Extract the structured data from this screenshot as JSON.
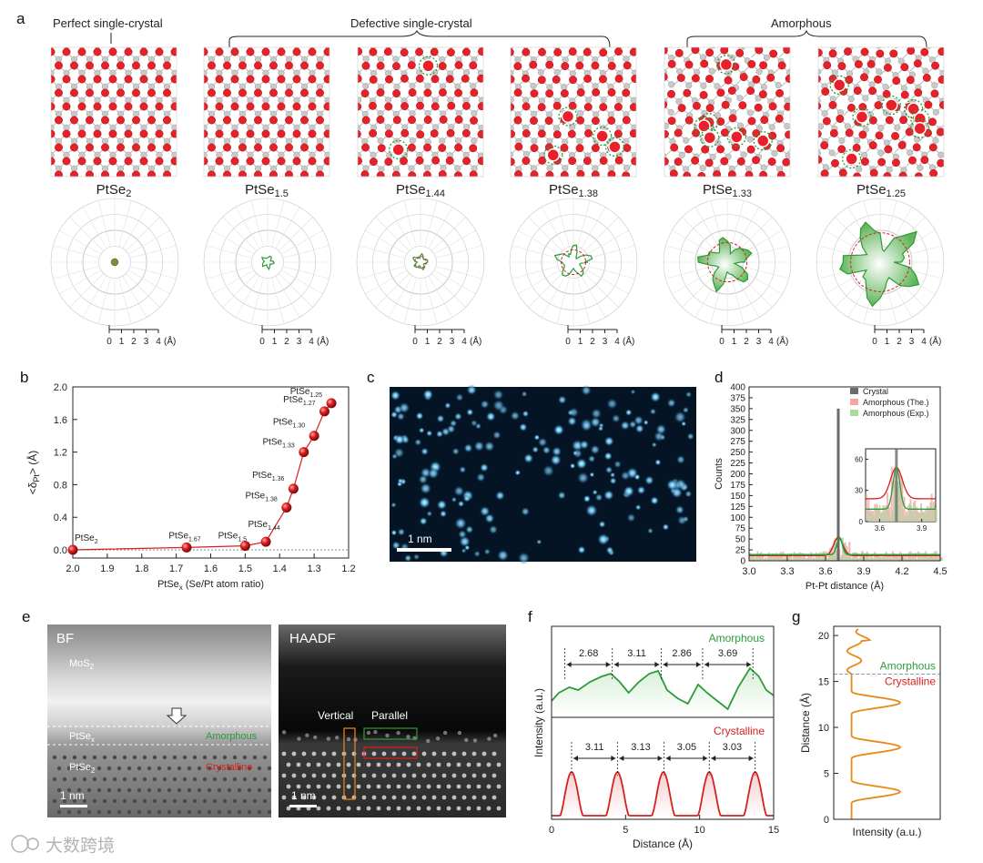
{
  "panels": {
    "a": {
      "label": "a",
      "group_labels": [
        "Perfect single-crystal",
        "Defective single-crystal",
        "Amorphous"
      ],
      "structures": [
        {
          "formula": "PtSe",
          "sub": "2",
          "defects": 0,
          "polar_level": 0.2
        },
        {
          "formula": "PtSe",
          "sub": "1.5",
          "defects": 0,
          "polar_level": 0.3
        },
        {
          "formula": "PtSe",
          "sub": "1.44",
          "defects": 2,
          "polar_level": 0.35
        },
        {
          "formula": "PtSe",
          "sub": "1.38",
          "defects": 4,
          "polar_level": 0.75
        },
        {
          "formula": "PtSe",
          "sub": "1.33",
          "defects": 6,
          "polar_level": 1.2
        },
        {
          "formula": "PtSe",
          "sub": "1.25",
          "defects": 7,
          "polar_level": 1.8
        }
      ],
      "scale_ticks": [
        "0",
        "1",
        "2",
        "3",
        "4"
      ],
      "scale_unit": "(Å)"
    },
    "b": {
      "label": "b",
      "chart_data": {
        "type": "line",
        "xlabel": "PtSe",
        "xlabel_sub": "x",
        "xlabel_tail": " (Se/Pt atom ratio)",
        "ylabel": "<δ",
        "ylabel_sub": "Pt",
        "ylabel_tail": "> (Å)",
        "xlim": [
          2.0,
          1.2
        ],
        "ylim": [
          -0.1,
          2.0
        ],
        "xticks": [
          "2.0",
          "1.9",
          "1.8",
          "1.7",
          "1.6",
          "1.5",
          "1.4",
          "1.3",
          "1.2"
        ],
        "yticks": [
          "0.0",
          "0.4",
          "0.8",
          "1.2",
          "1.6",
          "2.0"
        ],
        "points": [
          {
            "x": 2.0,
            "y": 0.0,
            "label": "PtSe",
            "sub": "2"
          },
          {
            "x": 1.67,
            "y": 0.03,
            "label": "PtSe",
            "sub": "1.67"
          },
          {
            "x": 1.5,
            "y": 0.05,
            "label": "PtSe",
            "sub": "1.5"
          },
          {
            "x": 1.44,
            "y": 0.1,
            "label": "PtSe",
            "sub": "1.44"
          },
          {
            "x": 1.38,
            "y": 0.52,
            "label": "PtSe",
            "sub": "1.38"
          },
          {
            "x": 1.36,
            "y": 0.75,
            "label": "PtSe",
            "sub": "1.36"
          },
          {
            "x": 1.33,
            "y": 1.2,
            "label": "PtSe",
            "sub": "1.33"
          },
          {
            "x": 1.3,
            "y": 1.4,
            "label": "PtSe",
            "sub": "1.30"
          },
          {
            "x": 1.27,
            "y": 1.7,
            "label": "PtSe",
            "sub": "1.27"
          },
          {
            "x": 1.25,
            "y": 1.8,
            "label": "PtSe",
            "sub": "1.25"
          }
        ]
      }
    },
    "c": {
      "label": "c",
      "scale_bar": "1 nm"
    },
    "d": {
      "label": "d",
      "chart_data": {
        "type": "bar",
        "xlabel": "Pt-Pt distance (Å)",
        "ylabel": "Counts",
        "xlim": [
          3.0,
          4.5
        ],
        "ylim": [
          0,
          400
        ],
        "xticks": [
          "3.0",
          "3.3",
          "3.6",
          "3.9",
          "4.2",
          "4.5"
        ],
        "yticks": [
          "0",
          "25",
          "50",
          "75",
          "100",
          "125",
          "150",
          "175",
          "200",
          "225",
          "250",
          "275",
          "300",
          "325",
          "350",
          "375",
          "400"
        ],
        "legend": [
          "Crystal",
          "Amorphous (The.)",
          "Amorphous (Exp.)"
        ],
        "legend_colors": [
          "#6b6b6b",
          "#f2a7a7",
          "#a9dba0"
        ],
        "crystal_peak": {
          "x": 3.7,
          "y": 350
        },
        "inset": {
          "xticks": [
            "3.6",
            "3.9"
          ],
          "yticks": [
            "0",
            "30",
            "60"
          ]
        }
      }
    },
    "e": {
      "label": "e",
      "bf_label": "BF",
      "haadf_label": "HAADF",
      "layers": [
        {
          "name": "MoS",
          "sub": "2"
        },
        {
          "name": "PtSe",
          "sub": "x"
        },
        {
          "name": "PtSe",
          "sub": "2"
        }
      ],
      "amorphous": "Amorphous",
      "crystalline": "Crystalline",
      "vertical": "Vertical",
      "parallel": "Parallel",
      "scale_bar": "1 nm"
    },
    "f": {
      "label": "f",
      "chart_data": {
        "type": "line",
        "xlabel": "Distance (Å)",
        "ylabel": "Intensity (a.u.)",
        "xlim": [
          0,
          15
        ],
        "xticks": [
          "0",
          "5",
          "10",
          "15"
        ],
        "series": [
          {
            "name": "Amorphous",
            "color": "#2e9b3a",
            "spacings": [
              "2.68",
              "3.11",
              "2.86",
              "3.69"
            ]
          },
          {
            "name": "Crystalline",
            "color": "#d62020",
            "spacings": [
              "3.11",
              "3.13",
              "3.05",
              "3.03"
            ]
          }
        ]
      }
    },
    "g": {
      "label": "g",
      "chart_data": {
        "type": "line",
        "xlabel": "Intensity (a.u.)",
        "ylabel": "Distance (Å)",
        "ylim": [
          0,
          21
        ],
        "yticks": [
          "0",
          "5",
          "10",
          "15",
          "20"
        ],
        "amorphous": "Amorphous",
        "crystalline": "Crystalline",
        "boundary": 15.8
      }
    }
  },
  "watermark": "大数跨境",
  "colors": {
    "se": "#e8202a",
    "pt": "#c4c4c4",
    "green": "#2e9b3a",
    "red": "#d62020",
    "orange": "#e88a1a"
  }
}
